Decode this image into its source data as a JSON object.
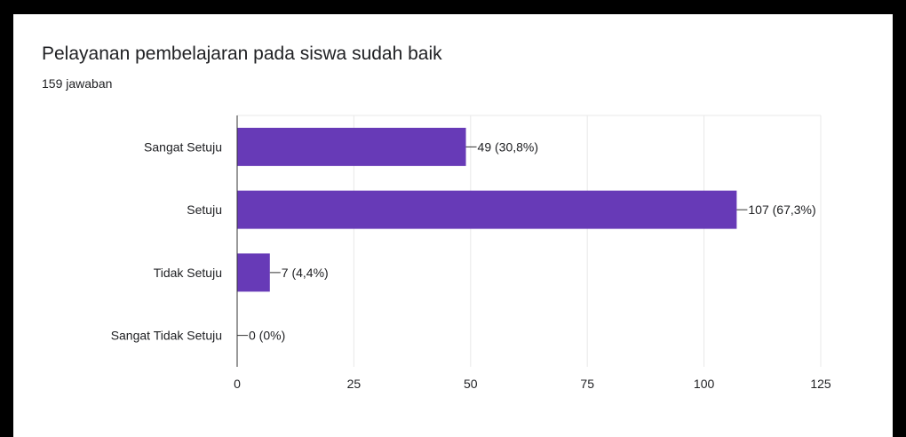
{
  "card": {
    "title": "Pelayanan pembelajaran pada siswa sudah baik",
    "response_count": "159 jawaban"
  },
  "colors": {
    "bar": "#673ab7",
    "grid": "#e8e8e8",
    "axis": "#333333",
    "text": "#202124",
    "frame": "#000000"
  },
  "chart_data": {
    "type": "bar",
    "orientation": "horizontal",
    "categories": [
      "Sangat Setuju",
      "Setuju",
      "Tidak Setuju",
      "Sangat Tidak Setuju"
    ],
    "values": [
      49,
      107,
      7,
      0
    ],
    "data_labels": [
      "49 (30,8%)",
      "107 (67,3%)",
      "7 (4,4%)",
      "0 (0%)"
    ],
    "xlim": [
      0,
      125
    ],
    "xticks": [
      0,
      25,
      50,
      75,
      100,
      125
    ],
    "grid": true
  }
}
